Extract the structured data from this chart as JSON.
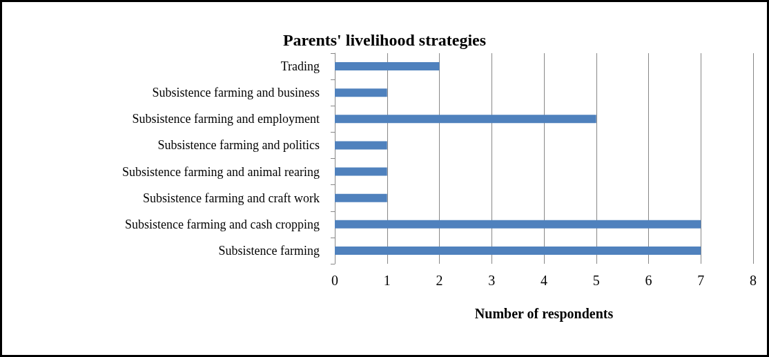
{
  "chart_data": {
    "type": "bar",
    "orientation": "horizontal",
    "title": "Parents' livelihood strategies",
    "xlabel": "Number of respondents",
    "categories": [
      "Trading",
      "Subsistence farming and business",
      "Subsistence farming and employment",
      "Subsistence farming and politics",
      "Subsistence farming and animal rearing",
      "Subsistence farming and craft work",
      "Subsistence farming and cash cropping",
      "Subsistence farming"
    ],
    "values": [
      2,
      1,
      5,
      1,
      1,
      1,
      7,
      7
    ],
    "color": "#4f81bd",
    "xlim": [
      0,
      8
    ],
    "xticks": [
      0,
      1,
      2,
      3,
      4,
      5,
      6,
      7,
      8
    ],
    "grid": "x"
  }
}
